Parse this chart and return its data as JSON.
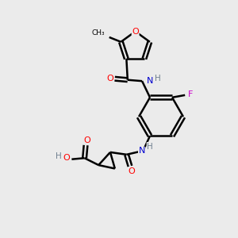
{
  "bg_color": "#ebebeb",
  "bond_color": "#000000",
  "atom_colors": {
    "O": "#ff0000",
    "N": "#0000cd",
    "F": "#cc00cc",
    "C": "#000000",
    "H": "#708090"
  }
}
